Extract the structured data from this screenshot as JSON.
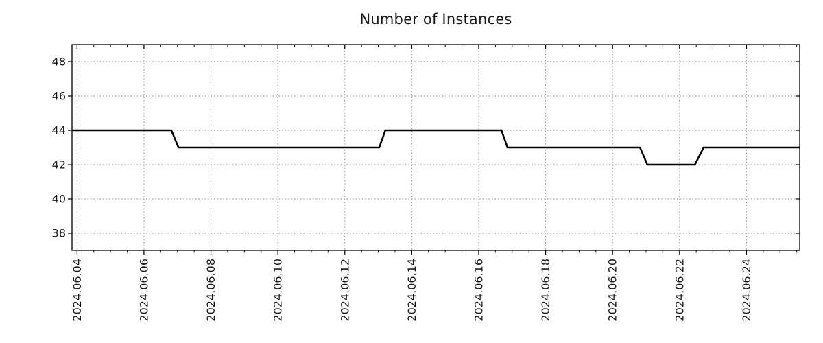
{
  "page": {
    "background_color": "#ffffff"
  },
  "chart_data": {
    "type": "line",
    "subtype": "step-monitoring-timeseries",
    "title": "Number of Instances",
    "legend": {
      "show": false
    },
    "grid": {
      "show": true,
      "style": "dotted",
      "color": "#8c8c8c",
      "at": "major-ticks-both-axes"
    },
    "frame_color": "#000000",
    "text_color": "#1a1a1a",
    "x_axis": {
      "label": "",
      "unit": "date",
      "epoch": "2024-06-04",
      "range_days": [
        -0.15,
        21.59
      ],
      "tick_label_rotation_deg": -90,
      "minor_tick_step_days": 0.5,
      "major_ticks": [
        {
          "day": 0,
          "label": "2024.06.04"
        },
        {
          "day": 2,
          "label": "2024.06.06"
        },
        {
          "day": 4,
          "label": "2024.06.08"
        },
        {
          "day": 6,
          "label": "2024.06.10"
        },
        {
          "day": 8,
          "label": "2024.06.12"
        },
        {
          "day": 10,
          "label": "2024.06.14"
        },
        {
          "day": 12,
          "label": "2024.06.16"
        },
        {
          "day": 14,
          "label": "2024.06.18"
        },
        {
          "day": 16,
          "label": "2024.06.20"
        },
        {
          "day": 18,
          "label": "2024.06.22"
        },
        {
          "day": 20,
          "label": "2024.06.24"
        }
      ]
    },
    "y_axis": {
      "label": "",
      "range": [
        37,
        49
      ],
      "major_ticks": [
        38,
        40,
        42,
        44,
        46,
        48
      ]
    },
    "series": [
      {
        "name": "instances",
        "color": "#000000",
        "stroke_width": 2.6,
        "points_day_value": [
          [
            -0.15,
            44
          ],
          [
            2.82,
            44
          ],
          [
            3.03,
            43
          ],
          [
            9.03,
            43
          ],
          [
            9.21,
            44
          ],
          [
            12.68,
            44
          ],
          [
            12.86,
            43
          ],
          [
            16.82,
            43
          ],
          [
            17.04,
            42
          ],
          [
            18.46,
            42
          ],
          [
            18.72,
            43
          ],
          [
            21.59,
            43
          ]
        ]
      }
    ],
    "readable_summary": "44 instances from 2024.06.04 to ~2024.06.07, 43 until ~2024.06.13, 44 until ~2024.06.17, 43 until ~2024.06.21, 42 until ~2024.06.22 midday, then 43 through 2024.06.25"
  }
}
